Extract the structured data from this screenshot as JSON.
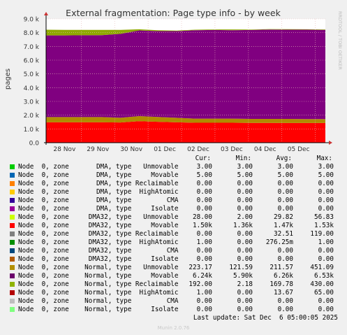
{
  "chart_data": {
    "type": "area",
    "title": "External fragmentation: Page type info - by week",
    "ylabel": "pages",
    "side_label": "RRDTOOL / TOBI OETIKER",
    "ylim": [
      0,
      9000
    ],
    "yticks": [
      0,
      1000,
      2000,
      3000,
      4000,
      5000,
      6000,
      7000,
      8000,
      9000
    ],
    "ytick_labels": [
      "0.0",
      "1.0 k",
      "2.0 k",
      "3.0 k",
      "4.0 k",
      "5.0 k",
      "6.0 k",
      "7.0 k",
      "8.0 k",
      "9.0 k"
    ],
    "x_labels": [
      "28 Nov",
      "29 Nov",
      "30 Nov",
      "01 Dec",
      "02 Dec",
      "03 Dec",
      "04 Dec",
      "05 Dec"
    ],
    "grid": true,
    "stacked_series": [
      {
        "name": "Normal, Unmovable",
        "color": "#ff0000",
        "values": [
          1480,
          1480,
          1480,
          1480,
          1470,
          1560,
          1520,
          1480,
          1450,
          1450,
          1450,
          1440,
          1440,
          1430,
          1430,
          1430
        ]
      },
      {
        "name": "Normal, Movable",
        "color": "#b08c00",
        "values": [
          380,
          380,
          380,
          380,
          340,
          370,
          350,
          330,
          300,
          300,
          300,
          290,
          290,
          300,
          290,
          290
        ]
      },
      {
        "name": "DMA32, Movable",
        "color": "#800080",
        "values": [
          5940,
          5940,
          5950,
          5960,
          6100,
          6230,
          6240,
          6300,
          6420,
          6440,
          6420,
          6460,
          6490,
          6480,
          6490,
          6480
        ]
      },
      {
        "name": "Normal, Reclaimable",
        "color": "#8fa800",
        "values": [
          410,
          400,
          390,
          380,
          290,
          80,
          60,
          40,
          40,
          40,
          60,
          30,
          40,
          40,
          30,
          30
        ]
      }
    ]
  },
  "legend": {
    "headers": [
      "Cur:",
      "Min:",
      "Avg:",
      "Max:"
    ],
    "rows": [
      {
        "label": "Node  0, zone       DMA, type   Unmovable",
        "color": "#00cc00",
        "cur": "3.00",
        "min": "3.00",
        "avg": "3.00",
        "max": "3.00"
      },
      {
        "label": "Node  0, zone       DMA, type     Movable",
        "color": "#0066b3",
        "cur": "5.00",
        "min": "5.00",
        "avg": "5.00",
        "max": "5.00"
      },
      {
        "label": "Node  0, zone       DMA, type Reclaimable",
        "color": "#ff8000",
        "cur": "0.00",
        "min": "0.00",
        "avg": "0.00",
        "max": "0.00"
      },
      {
        "label": "Node  0, zone       DMA, type  HighAtomic",
        "color": "#ffcc00",
        "cur": "0.00",
        "min": "0.00",
        "avg": "0.00",
        "max": "0.00"
      },
      {
        "label": "Node  0, zone       DMA, type         CMA",
        "color": "#330099",
        "cur": "0.00",
        "min": "0.00",
        "avg": "0.00",
        "max": "0.00"
      },
      {
        "label": "Node  0, zone       DMA, type     Isolate",
        "color": "#990099",
        "cur": "0.00",
        "min": "0.00",
        "avg": "0.00",
        "max": "0.00"
      },
      {
        "label": "Node  0, zone     DMA32, type   Unmovable",
        "color": "#ccff00",
        "cur": "28.00",
        "min": "2.00",
        "avg": "29.82",
        "max": "56.83"
      },
      {
        "label": "Node  0, zone     DMA32, type     Movable",
        "color": "#ff0000",
        "cur": "1.50k",
        "min": "1.36k",
        "avg": "1.47k",
        "max": "1.53k"
      },
      {
        "label": "Node  0, zone     DMA32, type Reclaimable",
        "color": "#808080",
        "cur": "0.00",
        "min": "0.00",
        "avg": "32.51",
        "max": "119.00"
      },
      {
        "label": "Node  0, zone     DMA32, type  HighAtomic",
        "color": "#008f00",
        "cur": "1.00",
        "min": "0.00",
        "avg": "276.25m",
        "max": "1.00"
      },
      {
        "label": "Node  0, zone     DMA32, type         CMA",
        "color": "#00487d",
        "cur": "0.00",
        "min": "0.00",
        "avg": "0.00",
        "max": "0.00"
      },
      {
        "label": "Node  0, zone     DMA32, type     Isolate",
        "color": "#b35a00",
        "cur": "0.00",
        "min": "0.00",
        "avg": "0.00",
        "max": "0.00"
      },
      {
        "label": "Node  0, zone    Normal, type   Unmovable",
        "color": "#b38f00",
        "cur": "223.17",
        "min": "121.59",
        "avg": "211.57",
        "max": "451.09"
      },
      {
        "label": "Node  0, zone    Normal, type     Movable",
        "color": "#6b006b",
        "cur": "6.24k",
        "min": "5.90k",
        "avg": "6.26k",
        "max": "6.53k"
      },
      {
        "label": "Node  0, zone    Normal, type Reclaimable",
        "color": "#8fb300",
        "cur": "192.00",
        "min": "2.18",
        "avg": "169.78",
        "max": "430.00"
      },
      {
        "label": "Node  0, zone    Normal, type  HighAtomic",
        "color": "#b30000",
        "cur": "1.00",
        "min": "0.00",
        "avg": "13.67",
        "max": "65.00"
      },
      {
        "label": "Node  0, zone    Normal, type         CMA",
        "color": "#bebebe",
        "cur": "0.00",
        "min": "0.00",
        "avg": "0.00",
        "max": "0.00"
      },
      {
        "label": "Node  0, zone    Normal, type     Isolate",
        "color": "#80ff80",
        "cur": "0.00",
        "min": "0.00",
        "avg": "0.00",
        "max": "0.00"
      }
    ],
    "last_update": "Last update: Sat Dec  6 05:00:05 2025"
  },
  "footer": "Munin 2.0.76"
}
